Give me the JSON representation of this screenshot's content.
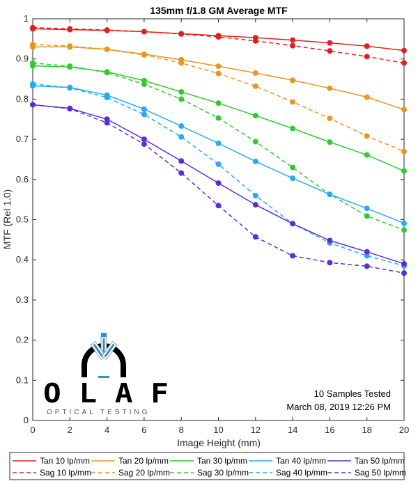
{
  "chart_data": {
    "type": "line",
    "title": "135mm f/1.8 GM Average MTF",
    "xlabel": "Image Height (mm)",
    "ylabel": "MTF (Rel 1.0)",
    "xlim": [
      0,
      20
    ],
    "ylim": [
      0,
      1
    ],
    "x": [
      0,
      2,
      4,
      6,
      8,
      10,
      12,
      14,
      16,
      18,
      20
    ],
    "xticks": [
      "0",
      "2",
      "4",
      "6",
      "8",
      "10",
      "12",
      "14",
      "16",
      "18",
      "20"
    ],
    "yticks": [
      "0",
      "0.1",
      "0.2",
      "0.3",
      "0.4",
      "0.5",
      "0.6",
      "0.7",
      "0.8",
      "0.9",
      "1"
    ],
    "grid": false,
    "series": [
      {
        "name": "Tan 10 lp/mm",
        "color": "#e02020",
        "dash": "solid",
        "values": [
          0.975,
          0.973,
          0.971,
          0.968,
          0.963,
          0.958,
          0.953,
          0.947,
          0.94,
          0.932,
          0.921
        ]
      },
      {
        "name": "Sag 10 lp/mm",
        "color": "#e02020",
        "dash": "dashed",
        "values": [
          0.978,
          0.975,
          0.972,
          0.968,
          0.962,
          0.955,
          0.945,
          0.933,
          0.92,
          0.906,
          0.89
        ]
      },
      {
        "name": "Tan 20 lp/mm",
        "color": "#e8961e",
        "dash": "solid",
        "values": [
          0.93,
          0.93,
          0.924,
          0.912,
          0.898,
          0.882,
          0.865,
          0.847,
          0.827,
          0.805,
          0.774
        ]
      },
      {
        "name": "Sag 20 lp/mm",
        "color": "#e8961e",
        "dash": "dashed",
        "values": [
          0.936,
          0.932,
          0.924,
          0.91,
          0.89,
          0.864,
          0.832,
          0.793,
          0.752,
          0.708,
          0.67
        ]
      },
      {
        "name": "Tan 30 lp/mm",
        "color": "#2ecc2e",
        "dash": "solid",
        "values": [
          0.883,
          0.88,
          0.868,
          0.846,
          0.818,
          0.79,
          0.759,
          0.727,
          0.693,
          0.661,
          0.621
        ]
      },
      {
        "name": "Sag 30 lp/mm",
        "color": "#2ecc2e",
        "dash": "dashed",
        "values": [
          0.89,
          0.882,
          0.866,
          0.837,
          0.8,
          0.753,
          0.694,
          0.63,
          0.563,
          0.509,
          0.474
        ]
      },
      {
        "name": "Tan 40 lp/mm",
        "color": "#27aaf0",
        "dash": "solid",
        "values": [
          0.833,
          0.829,
          0.81,
          0.775,
          0.733,
          0.69,
          0.645,
          0.603,
          0.563,
          0.528,
          0.491
        ]
      },
      {
        "name": "Sag 40 lp/mm",
        "color": "#27aaf0",
        "dash": "dashed",
        "values": [
          0.838,
          0.828,
          0.804,
          0.762,
          0.706,
          0.638,
          0.56,
          0.49,
          0.442,
          0.41,
          0.385
        ]
      },
      {
        "name": "Tan 50 lp/mm",
        "color": "#5a2fd6",
        "dash": "solid",
        "values": [
          0.786,
          0.777,
          0.75,
          0.7,
          0.646,
          0.591,
          0.537,
          0.49,
          0.448,
          0.42,
          0.39
        ]
      },
      {
        "name": "Sag 50 lp/mm",
        "color": "#5a2fd6",
        "dash": "dashed",
        "values": [
          0.786,
          0.776,
          0.741,
          0.688,
          0.616,
          0.535,
          0.457,
          0.41,
          0.393,
          0.384,
          0.367
        ]
      }
    ],
    "annotations": [
      "10 Samples Tested",
      "March 08, 2019 12:26 PM"
    ],
    "legend_location": "bottom"
  },
  "logo": {
    "letters": "O L A F",
    "subtitle": "OPTICAL TESTING"
  }
}
